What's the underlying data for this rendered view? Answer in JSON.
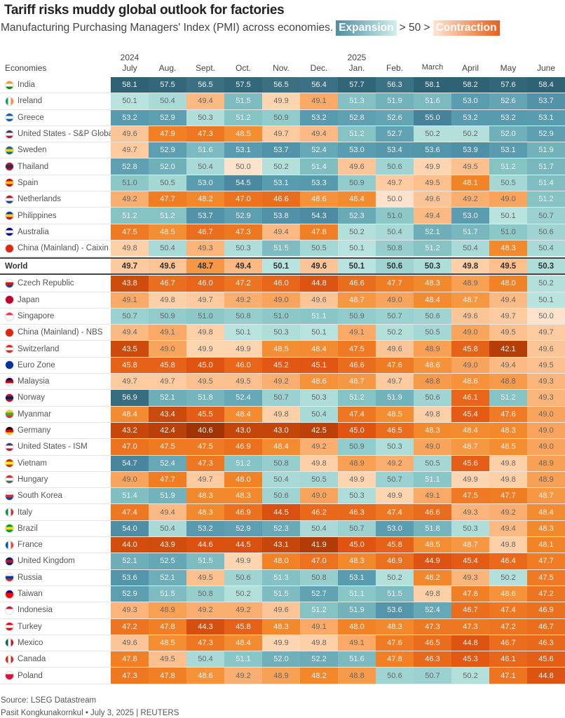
{
  "title": "Tariff risks muddy global outlook for factories",
  "subtitle": "Manufacturing Purchasing Managers' Index (PMI) across economies.",
  "legend": {
    "expansion": "Expansion",
    "middle": "> 50 >",
    "contraction": "Contraction"
  },
  "footer": {
    "source": "Source: LSEG Datastream",
    "credit": "Pasit Kongkunakornkul • July 3, 2025 | REUTERS"
  },
  "chart_data": {
    "type": "heatmap",
    "title": "Tariff risks muddy global outlook for factories",
    "row_header": "Economies",
    "years": [
      {
        "label": "2024",
        "col": 0
      },
      {
        "label": "2025",
        "col": 6
      }
    ],
    "categories": [
      "July",
      "Aug.",
      "Sept.",
      "Oct.",
      "Nov.",
      "Dec.",
      "Jan.",
      "Feb.",
      "March",
      "April",
      "May",
      "June"
    ],
    "threshold": 50,
    "colors": {
      "expansion_light": "#b9e3df",
      "expansion_dark": "#2f6275",
      "contraction_light": "#fde3cc",
      "contraction_dark": "#a03303"
    },
    "rows": [
      {
        "name": "India",
        "flag": [
          "#f59a30",
          "#ffffff",
          "#138808"
        ],
        "values": [
          58.1,
          57.5,
          56.5,
          57.5,
          56.5,
          56.4,
          57.7,
          56.3,
          58.1,
          58.2,
          57.6,
          58.4
        ]
      },
      {
        "name": "Ireland",
        "flag": [
          "#169b62",
          "#ffffff",
          "#ff883e"
        ],
        "vertical": true,
        "values": [
          50.1,
          50.4,
          49.4,
          51.5,
          49.9,
          49.1,
          51.3,
          51.9,
          51.6,
          53.0,
          52.6,
          53.7
        ]
      },
      {
        "name": "Greece",
        "flag": [
          "#0d5eaf",
          "#ffffff",
          "#0d5eaf"
        ],
        "values": [
          53.2,
          52.9,
          50.3,
          51.2,
          50.9,
          53.2,
          52.8,
          52.6,
          55.0,
          53.2,
          53.2,
          53.1
        ]
      },
      {
        "name": "United States - S&P Global",
        "flag": [
          "#3c3b6e",
          "#ffffff",
          "#b22234"
        ],
        "values": [
          49.6,
          47.9,
          47.3,
          48.5,
          49.7,
          49.4,
          51.2,
          52.7,
          50.2,
          50.2,
          52.0,
          52.9
        ]
      },
      {
        "name": "Sweden",
        "flag": [
          "#006aa7",
          "#fecc00",
          "#006aa7"
        ],
        "values": [
          49.7,
          52.9,
          51.6,
          53.1,
          53.7,
          52.4,
          53.0,
          53.4,
          53.6,
          53.9,
          53.1,
          51.9
        ]
      },
      {
        "name": "Thailand",
        "flag": [
          "#a51931",
          "#2d2a4a",
          "#a51931"
        ],
        "values": [
          52.8,
          52.0,
          50.4,
          50.0,
          50.2,
          51.4,
          49.6,
          50.6,
          49.9,
          49.5,
          51.2,
          51.7
        ]
      },
      {
        "name": "Spain",
        "flag": [
          "#c60b1e",
          "#ffc400",
          "#c60b1e"
        ],
        "values": [
          51.0,
          50.5,
          53.0,
          54.5,
          53.1,
          53.3,
          50.9,
          49.7,
          49.5,
          48.1,
          50.5,
          51.4
        ]
      },
      {
        "name": "Netherlands",
        "flag": [
          "#ae1c28",
          "#ffffff",
          "#21468b"
        ],
        "values": [
          49.2,
          47.7,
          48.2,
          47.0,
          46.6,
          48.6,
          48.4,
          50.0,
          49.6,
          49.2,
          49.0,
          51.2
        ]
      },
      {
        "name": "Philippines",
        "flag": [
          "#0038a8",
          "#fcd116",
          "#ce1126"
        ],
        "values": [
          51.2,
          51.2,
          53.7,
          52.9,
          53.8,
          54.3,
          52.3,
          51.0,
          49.4,
          53.0,
          50.1,
          50.7
        ]
      },
      {
        "name": "Australia",
        "flag": [
          "#00008b",
          "#ffffff",
          "#00008b"
        ],
        "values": [
          47.5,
          48.5,
          46.7,
          47.3,
          49.4,
          47.8,
          50.2,
          50.4,
          52.1,
          51.7,
          51.0,
          50.6
        ]
      },
      {
        "name": "China (Mainland) - Caixin",
        "flag": [
          "#de2910",
          "#de2910",
          "#de2910"
        ],
        "values": [
          49.8,
          50.4,
          49.3,
          50.3,
          51.5,
          50.5,
          50.1,
          50.8,
          51.2,
          50.4,
          48.3,
          50.4
        ]
      },
      {
        "name": "World",
        "world": true,
        "values": [
          49.7,
          49.6,
          48.7,
          49.4,
          50.1,
          49.6,
          50.1,
          50.6,
          50.3,
          49.8,
          49.5,
          50.3
        ]
      },
      {
        "name": "Czech Republic",
        "flag": [
          "#ffffff",
          "#d7141a",
          "#11457e"
        ],
        "values": [
          43.8,
          46.7,
          46.0,
          47.2,
          46.0,
          44.8,
          46.6,
          47.7,
          48.3,
          48.9,
          48.0,
          50.2
        ]
      },
      {
        "name": "Japan",
        "flag": [
          "#bc002d",
          "#bc002d",
          "#bc002d"
        ],
        "values": [
          49.1,
          49.8,
          49.7,
          49.2,
          49.0,
          49.6,
          48.7,
          49.0,
          48.4,
          48.7,
          49.4,
          50.1
        ]
      },
      {
        "name": "Singapore",
        "flag": [
          "#ef3340",
          "#ffffff",
          "#ffffff"
        ],
        "values": [
          50.7,
          50.9,
          51.0,
          50.8,
          51.0,
          51.1,
          50.9,
          50.7,
          50.6,
          49.6,
          49.7,
          50.0
        ]
      },
      {
        "name": "China (Mainland) - NBS",
        "flag": [
          "#de2910",
          "#de2910",
          "#de2910"
        ],
        "values": [
          49.4,
          49.1,
          49.8,
          50.1,
          50.3,
          50.1,
          49.1,
          50.2,
          50.5,
          49.0,
          49.5,
          49.7
        ]
      },
      {
        "name": "Switzerland",
        "flag": [
          "#d52b1e",
          "#ffffff",
          "#d52b1e"
        ],
        "values": [
          43.5,
          49.0,
          49.9,
          49.9,
          48.5,
          48.4,
          47.5,
          49.6,
          48.9,
          45.8,
          42.1,
          49.6
        ]
      },
      {
        "name": "Euro Zone",
        "flag": [
          "#003399",
          "#003399",
          "#003399"
        ],
        "values": [
          45.8,
          45.8,
          45.0,
          46.0,
          45.2,
          45.1,
          46.6,
          47.6,
          48.6,
          49.0,
          49.4,
          49.5
        ]
      },
      {
        "name": "Malaysia",
        "flag": [
          "#010066",
          "#cc0001",
          "#ffffff"
        ],
        "values": [
          49.7,
          49.7,
          49.5,
          49.5,
          49.2,
          48.6,
          48.7,
          49.7,
          48.8,
          48.6,
          48.8,
          49.3
        ]
      },
      {
        "name": "Norway",
        "flag": [
          "#ba0c2f",
          "#00205b",
          "#ba0c2f"
        ],
        "values": [
          56.9,
          52.1,
          51.8,
          52.4,
          50.7,
          50.3,
          51.2,
          51.9,
          50.6,
          46.1,
          51.2,
          49.3
        ]
      },
      {
        "name": "Myanmar",
        "flag": [
          "#fecb00",
          "#34b233",
          "#ea2839"
        ],
        "values": [
          48.4,
          43.4,
          45.5,
          48.4,
          49.8,
          50.4,
          47.4,
          48.5,
          49.8,
          45.4,
          47.6,
          49.0
        ]
      },
      {
        "name": "Germany",
        "flag": [
          "#000000",
          "#dd0000",
          "#ffce00"
        ],
        "values": [
          43.2,
          42.4,
          40.6,
          43.0,
          43.0,
          42.5,
          45.0,
          46.5,
          48.3,
          48.4,
          48.3,
          49.0
        ]
      },
      {
        "name": "United States - ISM",
        "flag": [
          "#3c3b6e",
          "#ffffff",
          "#b22234"
        ],
        "values": [
          47.0,
          47.5,
          47.5,
          46.9,
          48.4,
          49.2,
          50.9,
          50.3,
          49.0,
          48.7,
          48.5,
          49.0
        ]
      },
      {
        "name": "Vietnam",
        "flag": [
          "#da251d",
          "#ffff00",
          "#da251d"
        ],
        "values": [
          54.7,
          52.4,
          47.3,
          51.2,
          50.8,
          49.8,
          48.9,
          49.2,
          50.5,
          45.6,
          49.8,
          48.9
        ]
      },
      {
        "name": "Hungary",
        "flag": [
          "#ce2939",
          "#ffffff",
          "#477050"
        ],
        "values": [
          49.0,
          47.7,
          49.7,
          48.0,
          50.4,
          50.5,
          49.9,
          50.7,
          51.1,
          49.9,
          49.8,
          48.9
        ]
      },
      {
        "name": "South Korea",
        "flag": [
          "#ffffff",
          "#cd2e3a",
          "#0047a0"
        ],
        "values": [
          51.4,
          51.9,
          48.3,
          48.3,
          50.6,
          49.0,
          50.3,
          49.9,
          49.1,
          47.5,
          47.7,
          48.7
        ]
      },
      {
        "name": "Italy",
        "flag": [
          "#009246",
          "#ffffff",
          "#ce2b37"
        ],
        "vertical": true,
        "values": [
          47.4,
          49.4,
          48.3,
          46.9,
          44.5,
          46.2,
          46.3,
          47.4,
          46.6,
          49.3,
          49.2,
          48.4
        ]
      },
      {
        "name": "Brazil",
        "flag": [
          "#009c3b",
          "#ffdf00",
          "#009c3b"
        ],
        "values": [
          54.0,
          50.4,
          53.2,
          52.9,
          52.3,
          50.4,
          50.7,
          53.0,
          51.8,
          50.3,
          49.4,
          48.3
        ]
      },
      {
        "name": "France",
        "flag": [
          "#0055a4",
          "#ffffff",
          "#ef4135"
        ],
        "vertical": true,
        "values": [
          44.0,
          43.9,
          44.6,
          44.5,
          43.1,
          41.9,
          45.0,
          45.8,
          48.5,
          48.7,
          49.8,
          48.1
        ]
      },
      {
        "name": "United Kingdom",
        "flag": [
          "#012169",
          "#c8102e",
          "#012169"
        ],
        "values": [
          52.1,
          52.5,
          51.5,
          49.9,
          48.0,
          47.0,
          48.3,
          46.9,
          44.9,
          45.4,
          46.4,
          47.7
        ]
      },
      {
        "name": "Russia",
        "flag": [
          "#ffffff",
          "#0039a6",
          "#d52b1e"
        ],
        "values": [
          53.6,
          52.1,
          49.5,
          50.6,
          51.3,
          50.8,
          53.1,
          50.2,
          48.2,
          49.3,
          50.2,
          47.5
        ]
      },
      {
        "name": "Taiwan",
        "flag": [
          "#000095",
          "#fe0000",
          "#fe0000"
        ],
        "values": [
          52.9,
          51.5,
          50.8,
          50.2,
          51.5,
          52.7,
          51.1,
          51.5,
          49.8,
          47.8,
          48.6,
          47.2
        ]
      },
      {
        "name": "Indonesia",
        "flag": [
          "#ce1126",
          "#ffffff",
          "#ffffff"
        ],
        "values": [
          49.3,
          48.9,
          49.2,
          49.2,
          49.6,
          51.2,
          51.9,
          53.6,
          52.4,
          46.7,
          47.4,
          46.9
        ]
      },
      {
        "name": "Turkey",
        "flag": [
          "#e30a17",
          "#ffffff",
          "#e30a17"
        ],
        "values": [
          47.2,
          47.8,
          44.3,
          45.8,
          48.3,
          49.1,
          48.0,
          48.3,
          47.3,
          47.3,
          47.2,
          46.7
        ]
      },
      {
        "name": "Mexico",
        "flag": [
          "#006847",
          "#ffffff",
          "#ce1126"
        ],
        "vertical": true,
        "values": [
          49.6,
          48.5,
          47.3,
          48.4,
          49.9,
          49.8,
          49.1,
          47.6,
          46.5,
          44.8,
          46.7,
          46.3
        ]
      },
      {
        "name": "Canada",
        "flag": [
          "#d52b1e",
          "#ffffff",
          "#d52b1e"
        ],
        "vertical": true,
        "values": [
          47.8,
          49.5,
          50.4,
          51.1,
          52.0,
          52.2,
          51.6,
          47.8,
          46.3,
          45.3,
          46.1,
          45.6
        ]
      },
      {
        "name": "Poland",
        "flag": [
          "#ffffff",
          "#dc143c",
          "#dc143c"
        ],
        "values": [
          47.3,
          47.8,
          48.6,
          49.2,
          48.9,
          48.2,
          48.8,
          50.6,
          50.7,
          50.2,
          47.1,
          44.8
        ]
      }
    ]
  }
}
